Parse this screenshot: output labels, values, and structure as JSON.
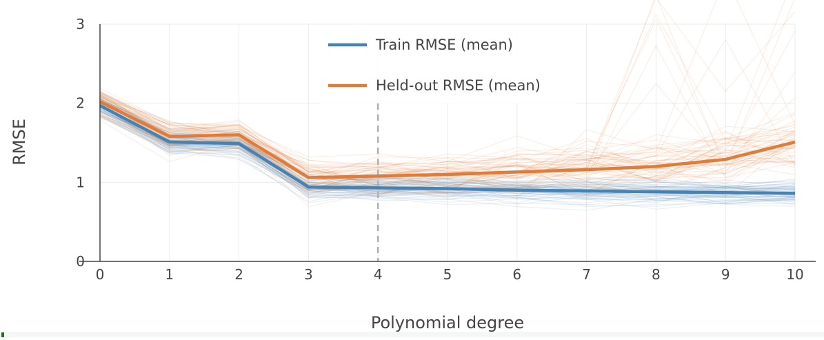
{
  "chart_data": {
    "type": "line",
    "xlabel": "Polynomial degree",
    "ylabel": "RMSE",
    "x": [
      0,
      1,
      2,
      3,
      4,
      5,
      6,
      7,
      8,
      9,
      10
    ],
    "xlim": [
      0,
      10
    ],
    "ylim": [
      0,
      3
    ],
    "xticks": [
      "0",
      "1",
      "2",
      "3",
      "4",
      "5",
      "6",
      "7",
      "8",
      "9",
      "10"
    ],
    "yticks": [
      "0",
      "1",
      "2",
      "3"
    ],
    "grid": true,
    "legend_position": "top-center",
    "reference_line": {
      "x": 4,
      "style": "dashed",
      "color": "#b0b0b0"
    },
    "series": [
      {
        "name": "Train RMSE (mean)",
        "color": "#4682b4",
        "values": [
          1.97,
          1.51,
          1.49,
          0.94,
          0.93,
          0.92,
          0.9,
          0.89,
          0.88,
          0.87,
          0.86
        ]
      },
      {
        "name": "Held-out RMSE (mean)",
        "color": "#e07b39",
        "values": [
          2.02,
          1.58,
          1.6,
          1.06,
          1.08,
          1.1,
          1.13,
          1.16,
          1.2,
          1.29,
          1.51
        ]
      }
    ],
    "background_traces": {
      "train_color": "#4682b4",
      "heldout_color": "#e07b39",
      "count_each": 60
    }
  }
}
